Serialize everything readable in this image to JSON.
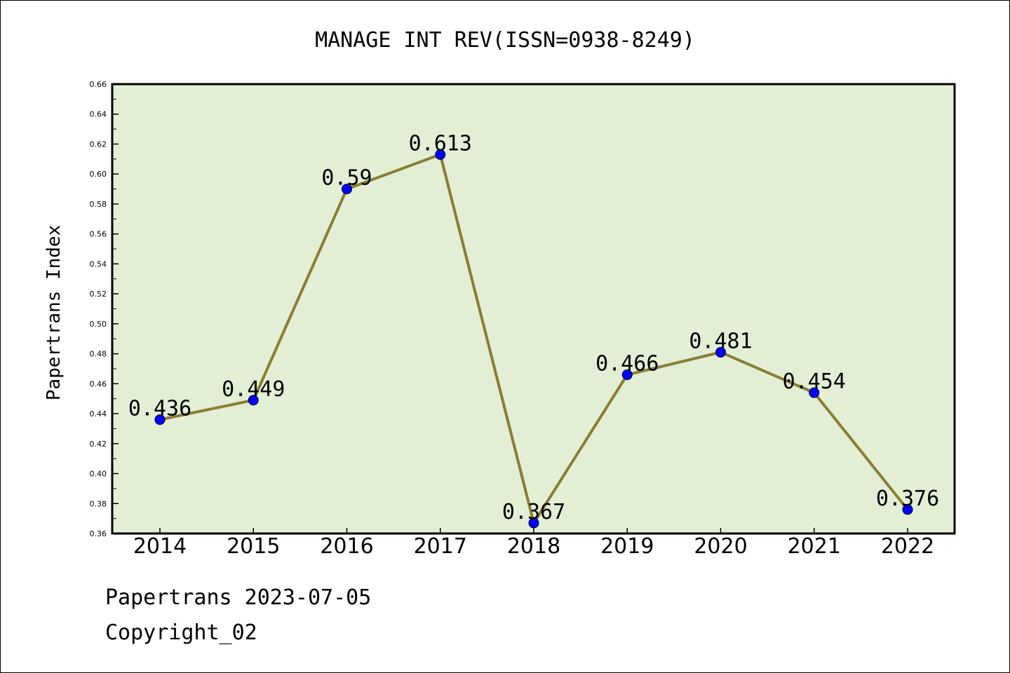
{
  "chart_data": {
    "type": "line",
    "title": "MANAGE INT REV(ISSN=0938-8249)",
    "ylabel": "Papertrans Index",
    "xlabel": "",
    "categories": [
      "2014",
      "2015",
      "2016",
      "2017",
      "2018",
      "2019",
      "2020",
      "2021",
      "2022"
    ],
    "values": [
      0.436,
      0.449,
      0.59,
      0.613,
      0.367,
      0.466,
      0.481,
      0.454,
      0.376
    ],
    "data_labels": [
      "0.436",
      "0.449",
      "0.59",
      "0.613",
      "0.367",
      "0.466",
      "0.481",
      "0.454",
      "0.376"
    ],
    "ylim": [
      0.36,
      0.66
    ],
    "yticks": [
      "0.36",
      "0.38",
      "0.40",
      "0.42",
      "0.44",
      "0.46",
      "0.48",
      "0.50",
      "0.52",
      "0.54",
      "0.56",
      "0.58",
      "0.60",
      "0.62",
      "0.64",
      "0.66"
    ],
    "grid": false,
    "colors": {
      "line": "#8b7d34",
      "marker": "#0000ff",
      "plot_background": "#e2efd5"
    }
  },
  "footer": {
    "line1": "Papertrans 2023-07-05",
    "line2": "Copyright_02"
  }
}
